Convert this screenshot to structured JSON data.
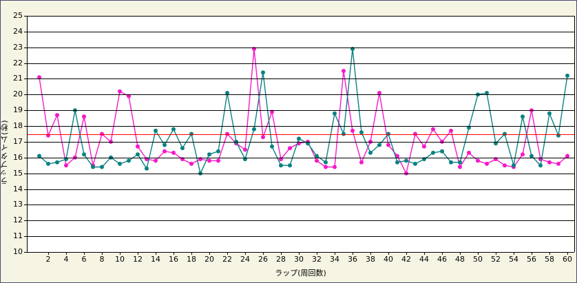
{
  "window": {
    "background_color": "#f6f4e3",
    "border_color": "#4a4a72",
    "plot_background": "#ffffff",
    "gridline_color": "#000000"
  },
  "chart_data": {
    "type": "line",
    "title": "",
    "xlabel": "ラップ(周回数)",
    "ylabel": "ラップタイム(秒)",
    "ylim": [
      10,
      25
    ],
    "xlim": [
      1,
      60
    ],
    "y_tick_step": 1,
    "x_tick_labels": [
      2,
      4,
      6,
      8,
      10,
      12,
      14,
      16,
      18,
      20,
      22,
      24,
      26,
      28,
      30,
      32,
      34,
      36,
      38,
      40,
      42,
      44,
      46,
      48,
      50,
      52,
      54,
      56,
      58,
      60
    ],
    "grid": "horizontal",
    "legend": "none",
    "reference_line": {
      "value": 17.5,
      "color": "#ff0000",
      "name": "target-lap-time-line"
    },
    "x": [
      1,
      2,
      3,
      4,
      5,
      6,
      7,
      8,
      9,
      10,
      11,
      12,
      13,
      14,
      15,
      16,
      17,
      18,
      19,
      20,
      21,
      22,
      23,
      24,
      25,
      26,
      27,
      28,
      29,
      30,
      31,
      32,
      33,
      34,
      35,
      36,
      37,
      38,
      39,
      40,
      41,
      42,
      43,
      44,
      45,
      46,
      47,
      48,
      49,
      50,
      51,
      52,
      53,
      54,
      55,
      56,
      57,
      58,
      59,
      60
    ],
    "series": [
      {
        "name": "driver-1-magenta",
        "color": "#f518c8",
        "marker": "circle",
        "values": [
          21.1,
          17.4,
          18.7,
          15.5,
          16.0,
          18.6,
          15.5,
          17.5,
          17.0,
          20.2,
          19.9,
          16.7,
          15.9,
          15.8,
          16.4,
          16.3,
          15.9,
          15.6,
          15.9,
          15.8,
          15.8,
          17.5,
          16.9,
          16.5,
          22.9,
          17.3,
          18.9,
          15.9,
          16.6,
          16.9,
          17.0,
          15.8,
          15.4,
          15.4,
          21.5,
          17.7,
          15.7,
          17.0,
          20.1,
          16.8,
          16.1,
          15.0,
          17.5,
          16.7,
          17.8,
          17.0,
          17.7,
          15.4,
          16.3,
          15.8,
          15.6,
          15.9,
          15.5,
          15.4,
          16.2,
          19.0,
          15.9,
          15.7,
          15.6,
          16.1
        ]
      },
      {
        "name": "driver-2-teal",
        "color": "#0a8181",
        "marker": "circle",
        "values": [
          16.1,
          15.6,
          15.7,
          15.9,
          19.0,
          16.2,
          15.4,
          15.4,
          16.0,
          15.6,
          15.8,
          16.2,
          15.3,
          17.7,
          16.8,
          17.8,
          16.6,
          17.5,
          15.0,
          16.2,
          16.4,
          20.1,
          17.0,
          15.9,
          17.8,
          21.4,
          16.7,
          15.5,
          15.5,
          17.2,
          16.9,
          16.1,
          15.7,
          18.8,
          17.5,
          22.9,
          17.6,
          16.3,
          16.8,
          17.5,
          15.7,
          15.8,
          15.6,
          15.9,
          16.3,
          16.4,
          15.7,
          15.7,
          17.9,
          20.0,
          20.1,
          16.9,
          17.5,
          15.5,
          18.6,
          16.1,
          15.5,
          18.8,
          17.4,
          21.2
        ]
      }
    ]
  }
}
